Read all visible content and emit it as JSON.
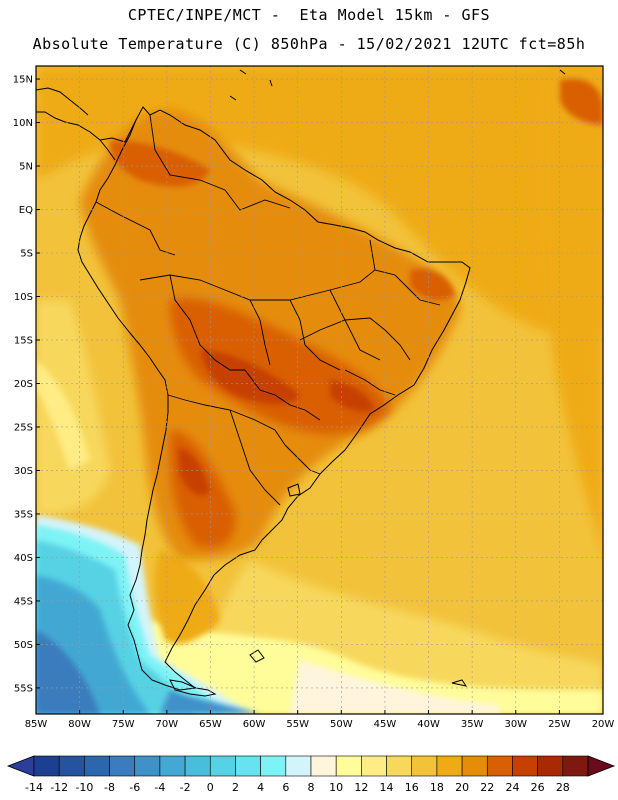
{
  "header": {
    "line1": "CPTEC/INPE/MCT -  Eta Model 15km - GFS",
    "line2": "Absolute Temperature (C) 850hPa - 15/02/2021 12UTC fct=85h"
  },
  "map": {
    "lat_labels": [
      "15N",
      "10N",
      "5N",
      "EQ",
      "5S",
      "10S",
      "15S",
      "20S",
      "25S",
      "30S",
      "35S",
      "40S",
      "45S",
      "50S",
      "55S"
    ],
    "lon_labels": [
      "85W",
      "80W",
      "75W",
      "70W",
      "65W",
      "60W",
      "55W",
      "50W",
      "45W",
      "40W",
      "35W",
      "30W",
      "25W",
      "20W"
    ],
    "extent": {
      "lon_min": -85,
      "lon_max": -20,
      "lat_min": -58,
      "lat_max": 16.5
    }
  },
  "colorbar": {
    "labels": [
      "-14",
      "-12",
      "-10",
      "-8",
      "-6",
      "-4",
      "-2",
      "0",
      "2",
      "4",
      "6",
      "8",
      "10",
      "12",
      "14",
      "16",
      "18",
      "20",
      "22",
      "24",
      "26",
      "28"
    ],
    "colors": [
      "#1c3f8f",
      "#26539f",
      "#2e66ad",
      "#3a7cbd",
      "#3f91c9",
      "#43a8d3",
      "#49bedc",
      "#56d2e4",
      "#66e3ee",
      "#7df3f6",
      "#d4f4fb",
      "#fff5dc",
      "#fffc9a",
      "#ffec84",
      "#f7d85d",
      "#f2c23b",
      "#efab16",
      "#e58c09",
      "#d95f03",
      "#c64002",
      "#a72a05",
      "#7d190f"
    ],
    "under_color": "#2b3f9a",
    "over_color": "#6a0b1c"
  }
}
